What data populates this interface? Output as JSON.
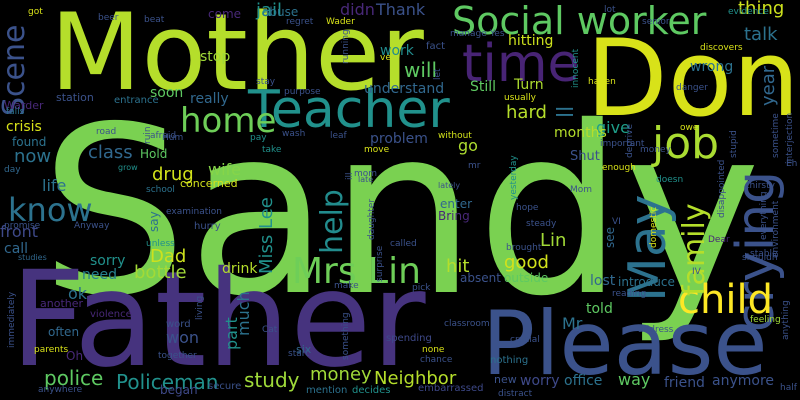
{
  "background": "#000000",
  "words": [
    {
      "text": "Sandy",
      "color": "#7ad151"
    },
    {
      "text": "Father",
      "color": "#46337e"
    },
    {
      "text": "Please",
      "color": "#3b528b"
    },
    {
      "text": "Mother",
      "color": "#b5de2b"
    },
    {
      "text": "Don",
      "color": "#d8e219"
    },
    {
      "text": "Teacher",
      "color": "#21918c"
    },
    {
      "text": "time",
      "color": "#482475"
    },
    {
      "text": "Social worker",
      "color": "#5ec962"
    },
    {
      "text": "job",
      "color": "#aadc32"
    },
    {
      "text": "crying",
      "color": "#3b528b"
    },
    {
      "text": "May",
      "color": "#2c728e"
    },
    {
      "text": "child",
      "color": "#fde725"
    },
    {
      "text": "Mrs Lin",
      "color": "#6ece58"
    },
    {
      "text": "home",
      "color": "#6ece58"
    },
    {
      "text": "know",
      "color": "#2c728e"
    },
    {
      "text": "family",
      "color": "#b5de2b"
    },
    {
      "text": "help",
      "color": "#228c8d"
    },
    {
      "text": "Scene",
      "color": "#3b528b"
    },
    {
      "text": "Policeman",
      "color": "#21918c"
    },
    {
      "text": "police",
      "color": "#5ec962"
    },
    {
      "text": "study",
      "color": "#9fda3a"
    },
    {
      "text": "Neighbor",
      "color": "#b5de2b"
    },
    {
      "text": "money",
      "color": "#a0da39"
    },
    {
      "text": "worry",
      "color": "#3e4989"
    },
    {
      "text": "office",
      "color": "#2c728e"
    },
    {
      "text": "way",
      "color": "#5ec962"
    },
    {
      "text": "friend",
      "color": "#3b528b"
    },
    {
      "text": "anymore",
      "color": "#3b528b"
    },
    {
      "text": "Miss Lee",
      "color": "#21918c"
    },
    {
      "text": "talk",
      "color": "#2c728e"
    },
    {
      "text": "thing",
      "color": "#cde11d"
    },
    {
      "text": "Dad",
      "color": "#cde11d"
    },
    {
      "text": "drug",
      "color": "#d2e21b"
    },
    {
      "text": "wife",
      "color": "#86d549"
    },
    {
      "text": "class",
      "color": "#31688e"
    },
    {
      "text": "good",
      "color": "#d2e21b"
    },
    {
      "text": "hit",
      "color": "#b5de2b"
    },
    {
      "text": "Lin",
      "color": "#a2da37"
    },
    {
      "text": "bottle",
      "color": "#a2da37"
    },
    {
      "text": "now",
      "color": "#2c728e"
    },
    {
      "text": "will",
      "color": "#5ec962"
    },
    {
      "text": "jail",
      "color": "#21918c"
    },
    {
      "text": "Thank",
      "color": "#3b528b"
    },
    {
      "text": "didn",
      "color": "#482878"
    },
    {
      "text": "hard",
      "color": "#b5de2b"
    },
    {
      "text": "ll",
      "color": "#2c728e"
    },
    {
      "text": "year",
      "color": "#31688e"
    },
    {
      "text": "wrong",
      "color": "#2c728e"
    },
    {
      "text": "give",
      "color": "#1f9e89"
    },
    {
      "text": "months",
      "color": "#b5de2b"
    },
    {
      "text": "go",
      "color": "#addc30"
    },
    {
      "text": "ok",
      "color": "#2c728e"
    },
    {
      "text": "life",
      "color": "#2c728e"
    },
    {
      "text": "front",
      "color": "#3e4989"
    },
    {
      "text": "call",
      "color": "#31688e"
    },
    {
      "text": "need",
      "color": "#26828e"
    },
    {
      "text": "sorry",
      "color": "#21918c"
    },
    {
      "text": "won",
      "color": "#3b528b"
    },
    {
      "text": "much",
      "color": "#2c728e"
    },
    {
      "text": "part",
      "color": "#21918c"
    },
    {
      "text": "drink",
      "color": "#b5de2b"
    },
    {
      "text": "lost",
      "color": "#31688e"
    },
    {
      "text": "told",
      "color": "#5ec962"
    },
    {
      "text": "Mr",
      "color": "#2c728e"
    },
    {
      "text": "crisis",
      "color": "#d8e219"
    },
    {
      "text": "found",
      "color": "#2c728e"
    },
    {
      "text": "really",
      "color": "#31688e"
    },
    {
      "text": "soon",
      "color": "#5ec962"
    },
    {
      "text": "stop",
      "color": "#a0da39"
    },
    {
      "text": "understand",
      "color": "#31688e"
    },
    {
      "text": "Still",
      "color": "#5ec962"
    },
    {
      "text": "Turn",
      "color": "#addc30"
    },
    {
      "text": "problem",
      "color": "#3b528b"
    },
    {
      "text": "work",
      "color": "#228c8d"
    },
    {
      "text": "hitting",
      "color": "#cde11d"
    },
    {
      "text": "enter",
      "color": "#31688e"
    },
    {
      "text": "Bring",
      "color": "#482878"
    },
    {
      "text": "Hold",
      "color": "#5ec962"
    },
    {
      "text": "say",
      "color": "#2c728e"
    },
    {
      "text": "concerned",
      "color": "#d2e21b"
    },
    {
      "text": "Shut",
      "color": "#3b528b"
    },
    {
      "text": "see",
      "color": "#31688e"
    },
    {
      "text": "introduce",
      "color": "#2c728e"
    },
    {
      "text": "outside",
      "color": "#5ec962"
    },
    {
      "text": "absent",
      "color": "#3b528b"
    },
    {
      "text": "began",
      "color": "#3e4989"
    },
    {
      "text": "often",
      "color": "#31688e"
    },
    {
      "text": "station",
      "color": "#3b528b"
    },
    {
      "text": "Warder",
      "color": "#482878"
    },
    {
      "text": "abuse",
      "color": "#2c728e"
    },
    {
      "text": "come",
      "color": "#482878"
    },
    {
      "text": "fact",
      "color": "#3b528b"
    },
    {
      "text": "entrance",
      "color": "#2c728e"
    },
    {
      "text": "six",
      "color": "#31688e"
    },
    {
      "text": "another",
      "color": "#482878"
    },
    {
      "text": "secure",
      "color": "#3b528b"
    },
    {
      "text": "mention",
      "color": "#2c728e"
    },
    {
      "text": "decides",
      "color": "#21918c"
    },
    {
      "text": "new",
      "color": "#3b528b"
    },
    {
      "text": "embarrassed",
      "color": "#3e4989"
    },
    {
      "text": "nothing",
      "color": "#2c728e"
    },
    {
      "text": "spending",
      "color": "#3e4989"
    },
    {
      "text": "Oh",
      "color": "#482878"
    },
    {
      "text": "violence",
      "color": "#482878"
    },
    {
      "text": "word",
      "color": "#3b528b"
    },
    {
      "text": "hurry",
      "color": "#3b528b"
    },
    {
      "text": "unless",
      "color": "#21918c"
    },
    {
      "text": "studies",
      "color": "#31688e"
    },
    {
      "text": "Anyway",
      "color": "#3b528b"
    },
    {
      "text": "day",
      "color": "#31688e"
    },
    {
      "text": "falls",
      "color": "#2c728e"
    },
    {
      "text": "Hum",
      "color": "#3b528b"
    },
    {
      "text": "road",
      "color": "#3b528b"
    },
    {
      "text": "grow",
      "color": "#21918c"
    },
    {
      "text": "school",
      "color": "#2c728e"
    },
    {
      "text": "afraid",
      "color": "#3b528b"
    },
    {
      "text": "pay",
      "color": "#21918c"
    },
    {
      "text": "leaf",
      "color": "#3b528b"
    },
    {
      "text": "wash",
      "color": "#3b528b"
    },
    {
      "text": "take",
      "color": "#21918c"
    },
    {
      "text": "move",
      "color": "#d8e219"
    },
    {
      "text": "late",
      "color": "#3b528b"
    },
    {
      "text": "lately",
      "color": "#3b528b"
    },
    {
      "text": "without",
      "color": "#d2e21b"
    },
    {
      "text": "yesterday",
      "color": "#21918c"
    },
    {
      "text": "enough",
      "color": "#d8e219"
    },
    {
      "text": "doesn",
      "color": "#21918c"
    },
    {
      "text": "thirsty",
      "color": "#3b528b"
    },
    {
      "text": "everything",
      "color": "#3b528b"
    },
    {
      "text": "stable",
      "color": "#3b528b"
    },
    {
      "text": "shouldn",
      "color": "#3b528b"
    },
    {
      "text": "Dear",
      "color": "#482878"
    },
    {
      "text": "feeling",
      "color": "#a0da39"
    },
    {
      "text": "environment",
      "color": "#3b528b"
    },
    {
      "text": "anything",
      "color": "#3b528b"
    },
    {
      "text": "half",
      "color": "#3b528b"
    },
    {
      "text": "interjection",
      "color": "#3b528b"
    },
    {
      "text": "sometime",
      "color": "#3b528b"
    },
    {
      "text": "Eh",
      "color": "#3b528b"
    },
    {
      "text": "owe",
      "color": "#d8e219"
    },
    {
      "text": "evidence",
      "color": "#21918c"
    },
    {
      "text": "discovers",
      "color": "#d8e219"
    },
    {
      "text": "lot",
      "color": "#3b528b"
    },
    {
      "text": "haven",
      "color": "#d8e219"
    },
    {
      "text": "usually",
      "color": "#d8e219"
    },
    {
      "text": "innocent",
      "color": "#21918c"
    },
    {
      "text": "manage",
      "color": "#3b528b"
    },
    {
      "text": "regret",
      "color": "#3b528b"
    },
    {
      "text": "Wader",
      "color": "#d8e219"
    },
    {
      "text": "beat",
      "color": "#3b528b"
    },
    {
      "text": "got",
      "color": "#d8e219"
    },
    {
      "text": "beer",
      "color": "#3b528b"
    },
    {
      "text": "pick",
      "color": "#3b528b"
    },
    {
      "text": "called",
      "color": "#3b528b"
    },
    {
      "text": "steady",
      "color": "#3b528b"
    },
    {
      "text": "hope",
      "color": "#3b528b"
    },
    {
      "text": "crucial",
      "color": "#3b528b"
    },
    {
      "text": "distract",
      "color": "#3b528b"
    },
    {
      "text": "none",
      "color": "#d8e219"
    },
    {
      "text": "chance",
      "color": "#3b528b"
    },
    {
      "text": "classroom",
      "color": "#3b528b"
    },
    {
      "text": "reading",
      "color": "#3b528b"
    },
    {
      "text": "address",
      "color": "#3b528b"
    },
    {
      "text": "together",
      "color": "#3b528b"
    },
    {
      "text": "parents",
      "color": "#d8e219"
    },
    {
      "text": "immediately",
      "color": "#3b528b"
    },
    {
      "text": "anywhere",
      "color": "#3b528b"
    },
    {
      "text": "something",
      "color": "#3b528b"
    },
    {
      "text": "make",
      "color": "#3b528b"
    },
    {
      "text": "surprise",
      "color": "#3b528b"
    },
    {
      "text": "daughter",
      "color": "#3b528b"
    },
    {
      "text": "mom",
      "color": "#3b528b"
    },
    {
      "text": "Mom",
      "color": "#3b528b"
    },
    {
      "text": "important",
      "color": "#3b528b"
    },
    {
      "text": "deprive",
      "color": "#3b528b"
    },
    {
      "text": "stupid",
      "color": "#3b528b"
    },
    {
      "text": "disappointed",
      "color": "#3b528b"
    },
    {
      "text": "danger",
      "color": "#3b528b"
    },
    {
      "text": "senior",
      "color": "#3b528b"
    },
    {
      "text": "purpose",
      "color": "#3b528b"
    },
    {
      "text": "stay",
      "color": "#3b528b"
    },
    {
      "text": "running",
      "color": "#3b528b"
    },
    {
      "text": "ve",
      "color": "#d8e219"
    },
    {
      "text": "Yes",
      "color": "#3b528b"
    },
    {
      "text": "let",
      "color": "#3b528b"
    },
    {
      "text": "living",
      "color": "#3b528b"
    },
    {
      "text": "Cat",
      "color": "#3b528b"
    },
    {
      "text": "start",
      "color": "#3b528b"
    },
    {
      "text": "brought",
      "color": "#3b528b"
    },
    {
      "text": "examination",
      "color": "#3b528b"
    },
    {
      "text": "domestic",
      "color": "#d8e219"
    },
    {
      "text": "VI",
      "color": "#3b528b"
    },
    {
      "text": "IV",
      "color": "#3b528b"
    },
    {
      "text": "money",
      "color": "#3b528b"
    },
    {
      "text": "promise",
      "color": "#3b528b"
    },
    {
      "text": "ruin",
      "color": "#3b528b"
    },
    {
      "text": "ill",
      "color": "#3b528b"
    },
    {
      "text": "mr",
      "color": "#3b528b"
    }
  ]
}
